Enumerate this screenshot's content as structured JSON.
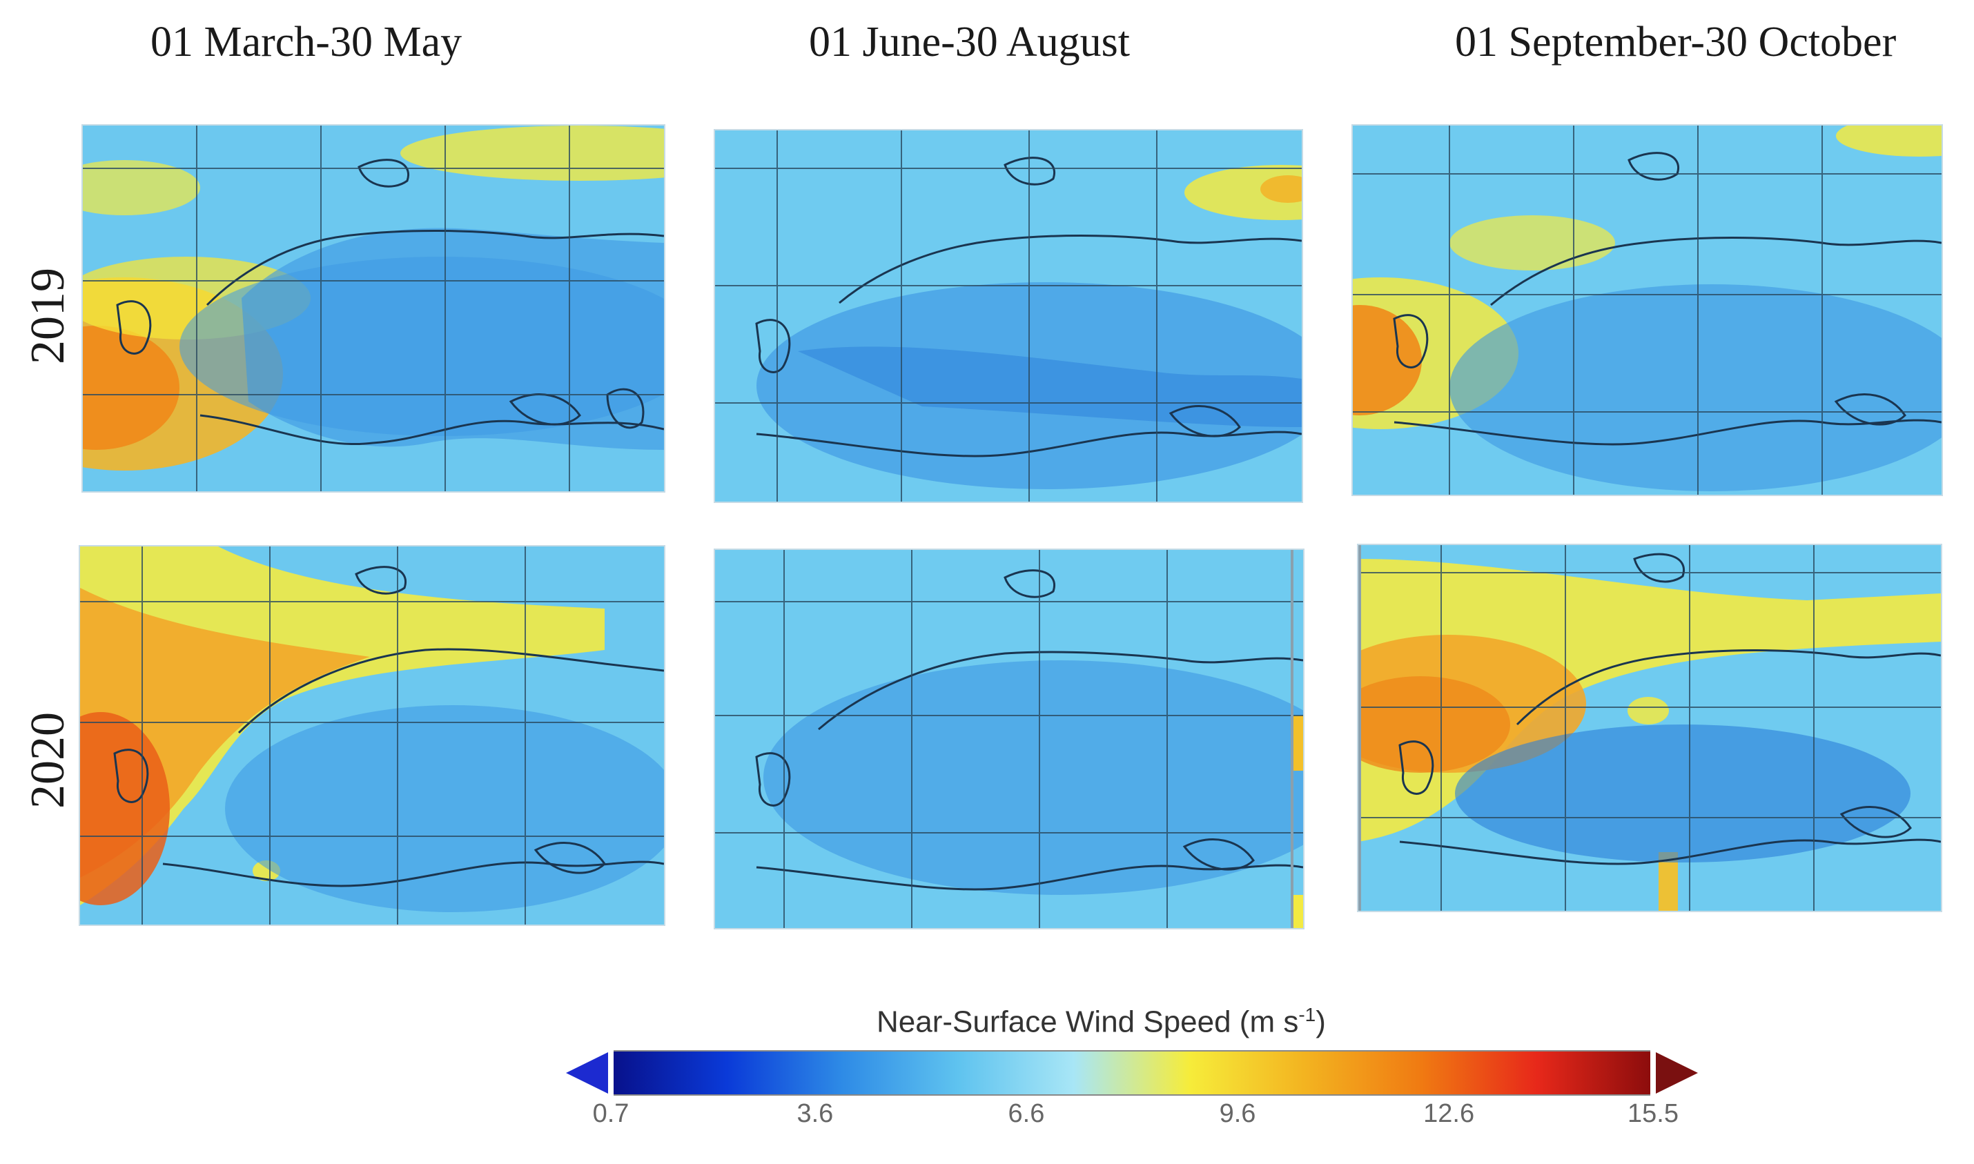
{
  "columns": [
    "01 March-30 May",
    "01 June-30 August",
    "01 September-30 October"
  ],
  "rows": [
    "2019",
    "2020"
  ],
  "panels": [
    {
      "year": "2019",
      "period": "01 March-30 May",
      "atlantic": "yellow-orange"
    },
    {
      "year": "2019",
      "period": "01 June-30 August",
      "atlantic": "light-blue"
    },
    {
      "year": "2019",
      "period": "01 September-30 October",
      "atlantic": "yellow-orange"
    },
    {
      "year": "2020",
      "period": "01 March-30 May",
      "atlantic": "orange-red"
    },
    {
      "year": "2020",
      "period": "01 June-30 August",
      "atlantic": "light-blue"
    },
    {
      "year": "2020",
      "period": "01 September-30 October",
      "atlantic": "orange"
    }
  ],
  "colorbar": {
    "title": "Near-Surface Wind Speed (m s",
    "title_exp": "-1",
    "title_end": ")",
    "ticks": [
      "0.7",
      "3.6",
      "6.6",
      "9.6",
      "12.6",
      "15.5"
    ],
    "min": 0.7,
    "max": 15.5,
    "stops": [
      "#08108a",
      "#0a3ad8",
      "#2e8be6",
      "#5fc3ef",
      "#a8e6f6",
      "#f6ec3a",
      "#f3b320",
      "#f07a12",
      "#e7281a",
      "#8a0c0c"
    ],
    "under_color": "#1c2ad0",
    "over_color": "#7a1010"
  }
}
